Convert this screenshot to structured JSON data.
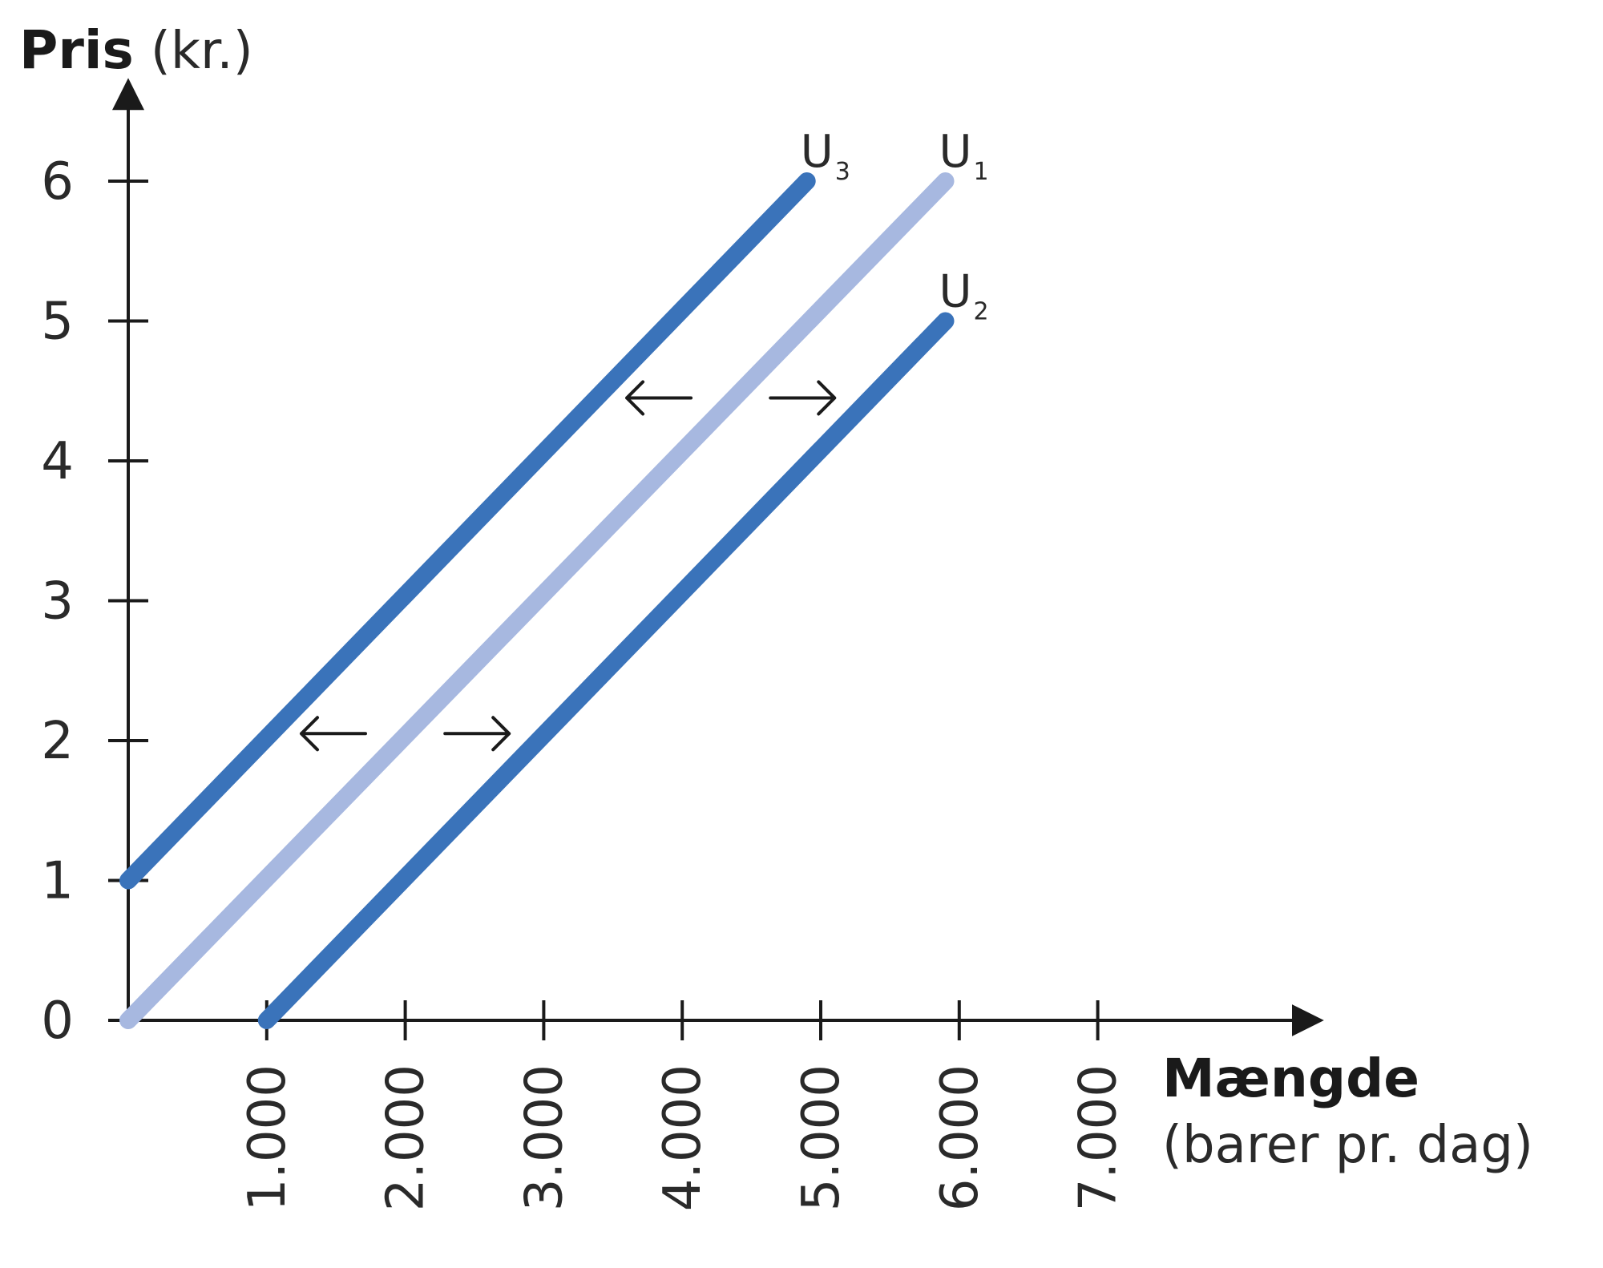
{
  "chart_data": {
    "type": "line",
    "ylabel_bold": "Pris",
    "ylabel_rest": "(kr.)",
    "xlabel_bold": "Mængde",
    "xlabel_sub": "(barer pr. dag)",
    "xlim": [
      0,
      7800
    ],
    "ylim": [
      0,
      6.6
    ],
    "x_ticks": [
      1000,
      2000,
      3000,
      4000,
      5000,
      6000,
      7000
    ],
    "x_tick_labels": [
      "1.000",
      "2.000",
      "3.000",
      "4.000",
      "5.000",
      "6.000",
      "7.000"
    ],
    "y_ticks": [
      0,
      1,
      2,
      3,
      4,
      5,
      6
    ],
    "y_tick_labels": [
      "0",
      "1",
      "2",
      "3",
      "4",
      "5",
      "6"
    ],
    "series": [
      {
        "name": "U",
        "subscript": "3",
        "color": "#3a73ba",
        "x": [
          0,
          4900
        ],
        "y": [
          1,
          6
        ]
      },
      {
        "name": "U",
        "subscript": "1",
        "color": "#a7b8e0",
        "x": [
          0,
          5900
        ],
        "y": [
          0,
          6
        ]
      },
      {
        "name": "U",
        "subscript": "2",
        "color": "#3a73ba",
        "x": [
          1000,
          5900
        ],
        "y": [
          0,
          5
        ]
      }
    ],
    "annotations": [
      {
        "type": "shift-arrows",
        "y": 4.45,
        "left_x": 3600,
        "right_x": 5100
      },
      {
        "type": "shift-arrows",
        "y": 2.05,
        "left_x": 1250,
        "right_x": 2750
      }
    ]
  }
}
